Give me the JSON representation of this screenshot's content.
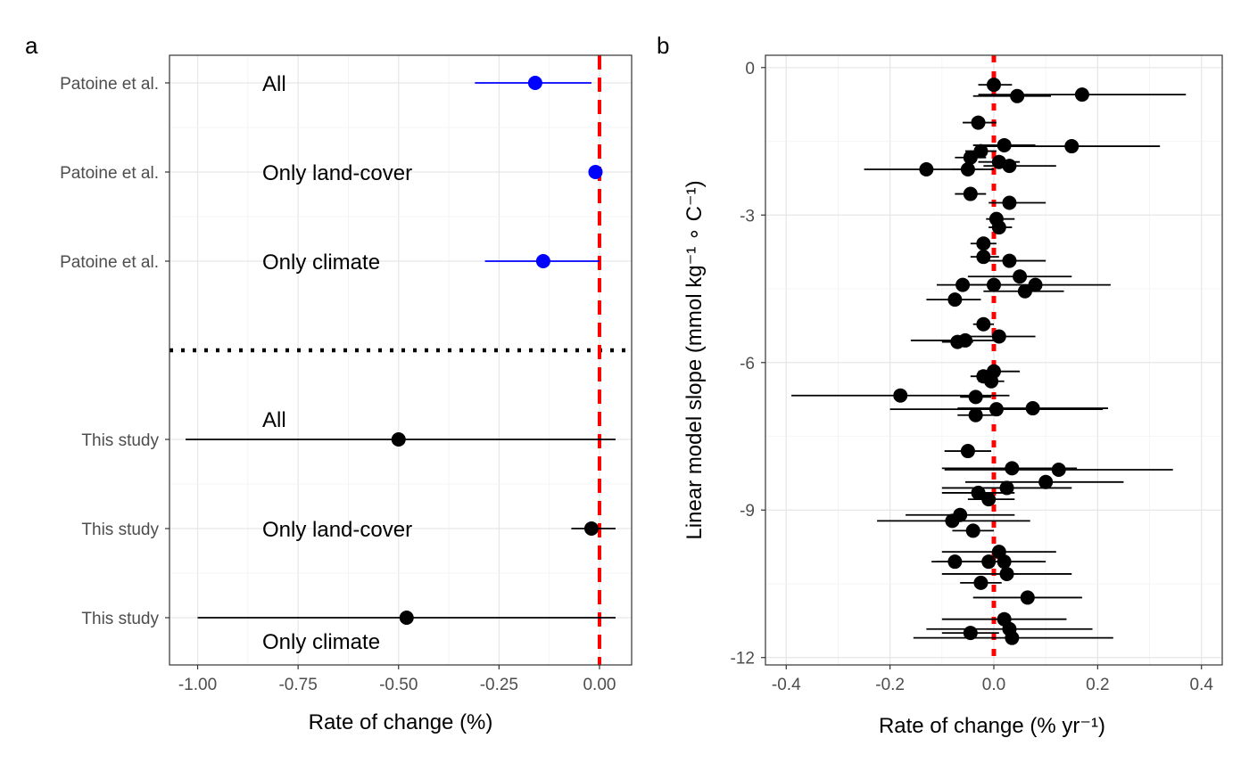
{
  "panels": {
    "a": {
      "tag": "a"
    },
    "b": {
      "tag": "b"
    }
  },
  "chart_data": [
    {
      "type": "forest",
      "panel": "a",
      "xlabel": "Rate of change (%)",
      "xlim": [
        -1.07,
        0.08
      ],
      "xticks": [
        -1.0,
        -0.75,
        -0.5,
        -0.25,
        0.0
      ],
      "xtick_labels": [
        "-1.00",
        "-0.75",
        "-0.50",
        "-0.25",
        "0.00"
      ],
      "reference_line": 0.0,
      "reference_line_color": "#ff0000",
      "separator": "dotted",
      "grid": true,
      "rows": [
        {
          "study": "Patoine et al.",
          "label": "All",
          "label_position": "same",
          "estimate": -0.16,
          "lower": -0.31,
          "upper": -0.02,
          "color": "#0000ff"
        },
        {
          "study": "Patoine et al.",
          "label": "Only land-cover",
          "label_position": "same",
          "estimate": -0.01,
          "lower": -0.015,
          "upper": 0.0,
          "color": "#0000ff"
        },
        {
          "study": "Patoine et al.",
          "label": "Only climate",
          "label_position": "same",
          "estimate": -0.14,
          "lower": -0.285,
          "upper": 0.0,
          "color": "#0000ff"
        },
        {
          "study": "This study",
          "label": "All",
          "label_position": "above",
          "estimate": -0.5,
          "lower": -1.03,
          "upper": 0.04,
          "color": "#000000"
        },
        {
          "study": "This study",
          "label": "Only land-cover",
          "label_position": "same",
          "estimate": -0.02,
          "lower": -0.07,
          "upper": 0.04,
          "color": "#000000"
        },
        {
          "study": "This study",
          "label": "Only climate",
          "label_position": "below",
          "estimate": -0.48,
          "lower": -1.0,
          "upper": 0.04,
          "color": "#000000"
        }
      ]
    },
    {
      "type": "scatter",
      "panel": "b",
      "xlabel": "Rate of change (% yr⁻¹)",
      "ylabel": "Linear model slope (mmol kg⁻¹ ∘ C⁻¹)",
      "xlim": [
        -0.44,
        0.44
      ],
      "ylim": [
        -12.15,
        0.25
      ],
      "xticks": [
        -0.4,
        -0.2,
        0.0,
        0.2,
        0.4
      ],
      "xtick_labels": [
        "-0.4",
        "-0.2",
        "0.0",
        "0.2",
        "0.4"
      ],
      "yticks": [
        0,
        -3,
        -6,
        -9,
        -12
      ],
      "ytick_labels": [
        "0",
        "-3",
        "-6",
        "-9",
        "-12"
      ],
      "reference_line": 0.0,
      "reference_line_color": "#ff0000",
      "grid": true,
      "points": [
        {
          "x": 0.0,
          "y": -0.35,
          "lower": -0.03,
          "upper": 0.035
        },
        {
          "x": 0.045,
          "y": -0.58,
          "lower": -0.04,
          "upper": 0.11
        },
        {
          "x": 0.17,
          "y": -0.55,
          "lower": -0.03,
          "upper": 0.37
        },
        {
          "x": -0.03,
          "y": -1.12,
          "lower": -0.06,
          "upper": 0.005
        },
        {
          "x": 0.02,
          "y": -1.58,
          "lower": -0.04,
          "upper": 0.08
        },
        {
          "x": 0.15,
          "y": -1.6,
          "lower": -0.02,
          "upper": 0.32
        },
        {
          "x": -0.025,
          "y": -1.7,
          "lower": -0.055,
          "upper": 0.005
        },
        {
          "x": -0.045,
          "y": -1.83,
          "lower": -0.075,
          "upper": -0.015
        },
        {
          "x": 0.01,
          "y": -1.92,
          "lower": -0.03,
          "upper": 0.05
        },
        {
          "x": 0.03,
          "y": -2.0,
          "lower": -0.02,
          "upper": 0.12
        },
        {
          "x": -0.13,
          "y": -2.07,
          "lower": -0.25,
          "upper": 0.0
        },
        {
          "x": -0.05,
          "y": -2.07,
          "lower": -0.08,
          "upper": -0.02
        },
        {
          "x": -0.045,
          "y": -2.57,
          "lower": -0.075,
          "upper": -0.015
        },
        {
          "x": 0.03,
          "y": -2.75,
          "lower": -0.01,
          "upper": 0.1
        },
        {
          "x": 0.005,
          "y": -3.08,
          "lower": -0.015,
          "upper": 0.04
        },
        {
          "x": 0.01,
          "y": -3.25,
          "lower": -0.01,
          "upper": 0.035
        },
        {
          "x": -0.02,
          "y": -3.58,
          "lower": -0.045,
          "upper": 0.005
        },
        {
          "x": -0.02,
          "y": -3.85,
          "lower": -0.045,
          "upper": 0.01
        },
        {
          "x": 0.03,
          "y": -3.93,
          "lower": -0.01,
          "upper": 0.1
        },
        {
          "x": 0.05,
          "y": -4.25,
          "lower": -0.05,
          "upper": 0.15
        },
        {
          "x": -0.06,
          "y": -4.42,
          "lower": -0.11,
          "upper": 0.0
        },
        {
          "x": 0.0,
          "y": -4.42,
          "lower": -0.05,
          "upper": 0.05
        },
        {
          "x": 0.08,
          "y": -4.42,
          "lower": -0.07,
          "upper": 0.225
        },
        {
          "x": 0.06,
          "y": -4.55,
          "lower": -0.02,
          "upper": 0.135
        },
        {
          "x": -0.075,
          "y": -4.72,
          "lower": -0.13,
          "upper": -0.025
        },
        {
          "x": -0.02,
          "y": -5.22,
          "lower": -0.04,
          "upper": 0.0
        },
        {
          "x": 0.01,
          "y": -5.47,
          "lower": -0.05,
          "upper": 0.08
        },
        {
          "x": -0.055,
          "y": -5.55,
          "lower": -0.16,
          "upper": 0.02
        },
        {
          "x": -0.07,
          "y": -5.58,
          "lower": -0.1,
          "upper": -0.04
        },
        {
          "x": 0.0,
          "y": -6.18,
          "lower": -0.03,
          "upper": 0.05
        },
        {
          "x": -0.02,
          "y": -6.28,
          "lower": -0.045,
          "upper": 0.005
        },
        {
          "x": -0.005,
          "y": -6.38,
          "lower": -0.03,
          "upper": 0.02
        },
        {
          "x": -0.18,
          "y": -6.67,
          "lower": -0.39,
          "upper": 0.03
        },
        {
          "x": -0.035,
          "y": -6.7,
          "lower": -0.065,
          "upper": -0.005
        },
        {
          "x": 0.005,
          "y": -6.95,
          "lower": -0.2,
          "upper": 0.21
        },
        {
          "x": 0.075,
          "y": -6.93,
          "lower": -0.07,
          "upper": 0.22
        },
        {
          "x": -0.035,
          "y": -7.07,
          "lower": -0.07,
          "upper": 0.0
        },
        {
          "x": -0.05,
          "y": -7.8,
          "lower": -0.095,
          "upper": -0.005
        },
        {
          "x": 0.035,
          "y": -8.15,
          "lower": -0.1,
          "upper": 0.16
        },
        {
          "x": 0.125,
          "y": -8.18,
          "lower": -0.095,
          "upper": 0.345
        },
        {
          "x": 0.1,
          "y": -8.43,
          "lower": -0.055,
          "upper": 0.25
        },
        {
          "x": 0.025,
          "y": -8.55,
          "lower": -0.1,
          "upper": 0.15
        },
        {
          "x": -0.03,
          "y": -8.65,
          "lower": -0.1,
          "upper": 0.04
        },
        {
          "x": -0.01,
          "y": -8.78,
          "lower": -0.05,
          "upper": 0.04
        },
        {
          "x": -0.065,
          "y": -9.1,
          "lower": -0.17,
          "upper": 0.04
        },
        {
          "x": -0.08,
          "y": -9.22,
          "lower": -0.225,
          "upper": 0.07
        },
        {
          "x": -0.04,
          "y": -9.42,
          "lower": -0.08,
          "upper": 0.0
        },
        {
          "x": 0.01,
          "y": -9.85,
          "lower": -0.1,
          "upper": 0.12
        },
        {
          "x": -0.075,
          "y": -10.05,
          "lower": -0.12,
          "upper": -0.03
        },
        {
          "x": -0.01,
          "y": -10.05,
          "lower": -0.11,
          "upper": 0.09
        },
        {
          "x": 0.02,
          "y": -10.05,
          "lower": -0.06,
          "upper": 0.1
        },
        {
          "x": 0.025,
          "y": -10.3,
          "lower": -0.1,
          "upper": 0.15
        },
        {
          "x": -0.025,
          "y": -10.48,
          "lower": -0.065,
          "upper": 0.015
        },
        {
          "x": 0.065,
          "y": -10.78,
          "lower": -0.04,
          "upper": 0.17
        },
        {
          "x": 0.02,
          "y": -11.22,
          "lower": -0.1,
          "upper": 0.14
        },
        {
          "x": 0.03,
          "y": -11.42,
          "lower": -0.13,
          "upper": 0.19
        },
        {
          "x": -0.045,
          "y": -11.5,
          "lower": -0.1,
          "upper": 0.01
        },
        {
          "x": 0.035,
          "y": -11.6,
          "lower": -0.155,
          "upper": 0.23
        }
      ]
    }
  ]
}
